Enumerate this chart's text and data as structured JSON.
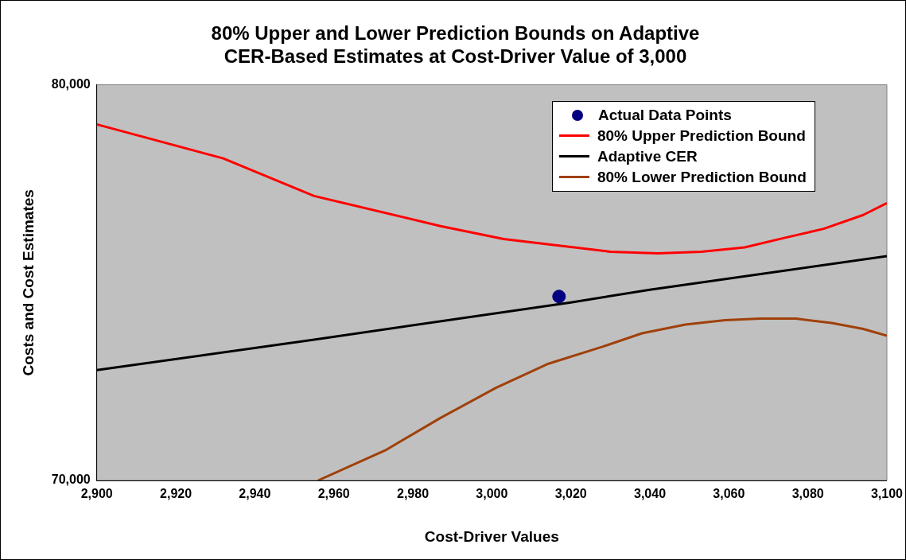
{
  "chart_data": {
    "type": "line",
    "title": "80% Upper and Lower Prediction Bounds on Adaptive\nCER-Based Estimates at Cost-Driver Value of 3,000",
    "xlabel": "Cost-Driver Values",
    "ylabel": "Costs and Cost Estimates",
    "xlim": [
      2900,
      3100
    ],
    "xticks": [
      {
        "value": 2900,
        "label": "2,900"
      },
      {
        "value": 2920,
        "label": "2,920"
      },
      {
        "value": 2940,
        "label": "2,940"
      },
      {
        "value": 2960,
        "label": "2,960"
      },
      {
        "value": 2980,
        "label": "2,980"
      },
      {
        "value": 3000,
        "label": "3,000"
      },
      {
        "value": 3020,
        "label": "3,020"
      },
      {
        "value": 3040,
        "label": "3,040"
      },
      {
        "value": 3060,
        "label": "3,060"
      },
      {
        "value": 3080,
        "label": "3,080"
      },
      {
        "value": 3100,
        "label": "3,100"
      }
    ],
    "ylim": [
      70000,
      80000
    ],
    "yticks": [
      {
        "value": 70000,
        "label": "70,000"
      },
      {
        "value": 80000,
        "label": "80,000"
      }
    ],
    "grid": false,
    "legend": "top right",
    "marker": "none",
    "line_style": "solid",
    "series": [
      {
        "name": "Actual Data Points",
        "type": "scatter",
        "marker": "circle",
        "color": "#000080",
        "x": [
          3017
        ],
        "values": [
          74650
        ]
      },
      {
        "name": "80% Upper Prediction Bound",
        "color": "#ff0000",
        "x": [
          2900,
          2932,
          2955,
          2987,
          3003,
          3030,
          3042,
          3053,
          3064,
          3074,
          3084,
          3094,
          3100
        ],
        "values": [
          79000,
          78140,
          77190,
          76430,
          76100,
          75780,
          75740,
          75780,
          75890,
          76130,
          76360,
          76710,
          77010
        ]
      },
      {
        "name": "Adaptive CER",
        "color": "#000000",
        "x": [
          2900,
          2955,
          3020,
          3040,
          3100
        ],
        "values": [
          72790,
          73560,
          74500,
          74820,
          75670
        ]
      },
      {
        "name": "80% Lower Prediction Bound",
        "color": "#a0400a",
        "x": [
          2956,
          2973,
          2987,
          3001,
          3014,
          3028,
          3038,
          3049,
          3059,
          3068,
          3077,
          3086,
          3094,
          3100
        ],
        "values": [
          70000,
          70760,
          71580,
          72340,
          72940,
          73380,
          73720,
          73940,
          74050,
          74090,
          74090,
          73980,
          73830,
          73660
        ]
      }
    ]
  }
}
